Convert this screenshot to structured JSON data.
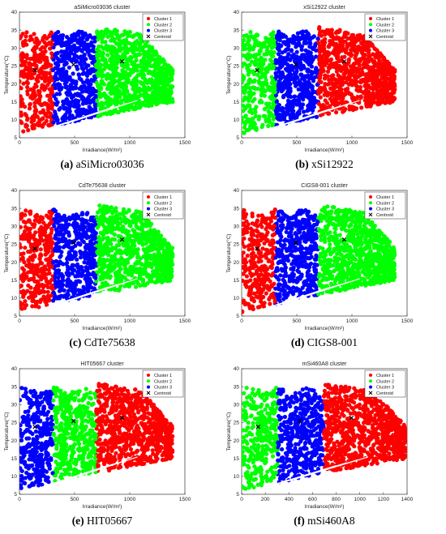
{
  "colors": {
    "cluster1": "#ff0000",
    "cluster2": "#00ff00",
    "cluster3": "#0000ff",
    "centroid": "#000000"
  },
  "chart_data": [
    {
      "type": "scatter",
      "title": "aSiMicro03036 cluster",
      "caption_letter": "(a)",
      "caption_text": "aSiMicro03036",
      "xlabel": "Irradiance(W/m²)",
      "ylabel": "Temperature(°C)",
      "xlim": [
        0,
        1500
      ],
      "ylim": [
        5,
        40
      ],
      "xticks": [
        0,
        500,
        1000,
        1500
      ],
      "yticks": [
        5,
        10,
        15,
        20,
        25,
        30,
        35,
        40
      ],
      "legend_position": "top-right",
      "legend": [
        "Cluster 1",
        "Cluster 2",
        "Cluster 3",
        "Centroid"
      ],
      "series": [
        {
          "name": "Cluster 1",
          "color": "#ff0000",
          "x_range": [
            0,
            305
          ]
        },
        {
          "name": "Cluster 3",
          "color": "#0000ff",
          "x_range": [
            305,
            695
          ]
        },
        {
          "name": "Cluster 2",
          "color": "#00ff00",
          "x_range": [
            695,
            1390
          ]
        }
      ],
      "centroids": [
        [
          140,
          23.8
        ],
        [
          490,
          25.4
        ],
        [
          930,
          26.3
        ]
      ]
    },
    {
      "type": "scatter",
      "title": "xSi12922 cluster",
      "caption_letter": "(b)",
      "caption_text": "xSi12922",
      "xlabel": "Irradiance(W/m²)",
      "ylabel": "Temperature(°C)",
      "xlim": [
        0,
        1500
      ],
      "ylim": [
        5,
        40
      ],
      "xticks": [
        0,
        500,
        1000,
        1500
      ],
      "yticks": [
        5,
        10,
        15,
        20,
        25,
        30,
        35,
        40
      ],
      "legend_position": "top-right",
      "legend": [
        "Cluster 1",
        "Cluster 2",
        "Cluster 3",
        "Centroid"
      ],
      "series": [
        {
          "name": "Cluster 2",
          "color": "#00ff00",
          "x_range": [
            0,
            305
          ]
        },
        {
          "name": "Cluster 3",
          "color": "#0000ff",
          "x_range": [
            305,
            695
          ]
        },
        {
          "name": "Cluster 1",
          "color": "#ff0000",
          "x_range": [
            695,
            1390
          ]
        }
      ],
      "centroids": [
        [
          140,
          23.8
        ],
        [
          490,
          25.4
        ],
        [
          930,
          26.3
        ]
      ]
    },
    {
      "type": "scatter",
      "title": "CdTe75638 cluster",
      "caption_letter": "(c)",
      "caption_text": "CdTe75638",
      "xlabel": "Irradiance(W/m²)",
      "ylabel": "Temperature(°C)",
      "xlim": [
        0,
        1500
      ],
      "ylim": [
        5,
        40
      ],
      "xticks": [
        0,
        500,
        1000,
        1500
      ],
      "yticks": [
        5,
        10,
        15,
        20,
        25,
        30,
        35,
        40
      ],
      "legend_position": "top-right",
      "legend": [
        "Cluster 1",
        "Cluster 2",
        "Cluster 3",
        "Centroid"
      ],
      "series": [
        {
          "name": "Cluster 1",
          "color": "#ff0000",
          "x_range": [
            0,
            305
          ]
        },
        {
          "name": "Cluster 3",
          "color": "#0000ff",
          "x_range": [
            305,
            695
          ]
        },
        {
          "name": "Cluster 2",
          "color": "#00ff00",
          "x_range": [
            695,
            1390
          ]
        }
      ],
      "centroids": [
        [
          140,
          23.8
        ],
        [
          490,
          25.4
        ],
        [
          930,
          26.3
        ]
      ]
    },
    {
      "type": "scatter",
      "title": "CIGS8-001 cluster",
      "caption_letter": "(d)",
      "caption_text": "CIGS8-001",
      "xlabel": "Irradiance(W/m²)",
      "ylabel": "Temperature(°C)",
      "xlim": [
        0,
        1500
      ],
      "ylim": [
        5,
        40
      ],
      "xticks": [
        0,
        500,
        1000,
        1500
      ],
      "yticks": [
        5,
        10,
        15,
        20,
        25,
        30,
        35,
        40
      ],
      "legend_position": "top-right",
      "legend": [
        "Cluster 1",
        "Cluster 2",
        "Cluster 3",
        "Centroid"
      ],
      "series": [
        {
          "name": "Cluster 1",
          "color": "#ff0000",
          "x_range": [
            0,
            305
          ]
        },
        {
          "name": "Cluster 3",
          "color": "#0000ff",
          "x_range": [
            305,
            695
          ]
        },
        {
          "name": "Cluster 2",
          "color": "#00ff00",
          "x_range": [
            695,
            1390
          ]
        }
      ],
      "centroids": [
        [
          140,
          23.8
        ],
        [
          490,
          25.4
        ],
        [
          930,
          26.3
        ]
      ]
    },
    {
      "type": "scatter",
      "title": "HIT05667 cluster",
      "caption_letter": "(e)",
      "caption_text": "HIT05667",
      "xlabel": "Irradiance(W/m²)",
      "ylabel": "Temperature(°C)",
      "xlim": [
        0,
        1500
      ],
      "ylim": [
        5,
        40
      ],
      "xticks": [
        0,
        500,
        1000,
        1500
      ],
      "yticks": [
        5,
        10,
        15,
        20,
        25,
        30,
        35,
        40
      ],
      "legend_position": "top-right",
      "legend": [
        "Cluster 1",
        "Cluster 2",
        "Cluster 3",
        "Centroid"
      ],
      "series": [
        {
          "name": "Cluster 3",
          "color": "#0000ff",
          "x_range": [
            0,
            305
          ]
        },
        {
          "name": "Cluster 2",
          "color": "#00ff00",
          "x_range": [
            305,
            695
          ]
        },
        {
          "name": "Cluster 1",
          "color": "#ff0000",
          "x_range": [
            695,
            1390
          ]
        }
      ],
      "centroids": [
        [
          140,
          23.8
        ],
        [
          490,
          25.4
        ],
        [
          930,
          26.3
        ]
      ]
    },
    {
      "type": "scatter",
      "title": "mSi460A8 cluster",
      "caption_letter": "(f)",
      "caption_text": "mSi460A8",
      "xlabel": "Irradiance(W/m²)",
      "ylabel": "Temperature(°C)",
      "xlim": [
        0,
        1400
      ],
      "ylim": [
        5,
        40
      ],
      "xticks": [
        0,
        200,
        400,
        600,
        800,
        1000,
        1200,
        1400
      ],
      "yticks": [
        5,
        10,
        15,
        20,
        25,
        30,
        35,
        40
      ],
      "legend_position": "top-right",
      "legend": [
        "Cluster 1",
        "Cluster 2",
        "Cluster 3",
        "Centroid"
      ],
      "series": [
        {
          "name": "Cluster 2",
          "color": "#00ff00",
          "x_range": [
            0,
            305
          ]
        },
        {
          "name": "Cluster 3",
          "color": "#0000ff",
          "x_range": [
            305,
            695
          ]
        },
        {
          "name": "Cluster 1",
          "color": "#ff0000",
          "x_range": [
            695,
            1390
          ]
        }
      ],
      "centroids": [
        [
          140,
          23.8
        ],
        [
          490,
          25.4
        ],
        [
          930,
          26.3
        ]
      ]
    }
  ]
}
